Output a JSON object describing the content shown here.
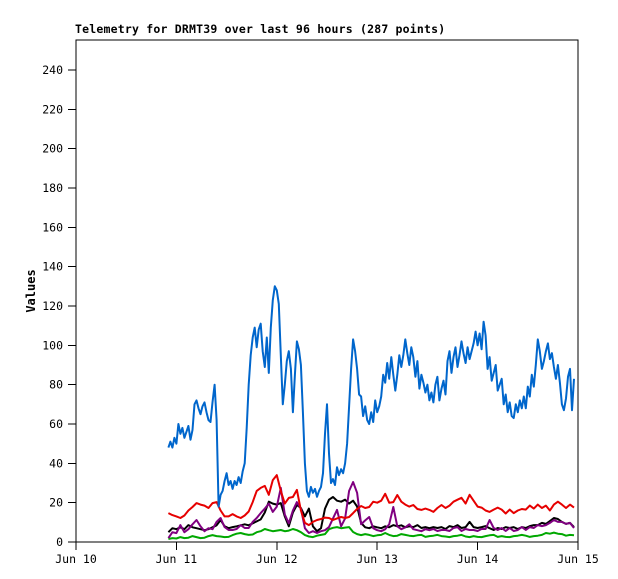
{
  "chart_data": {
    "type": "line",
    "title": "Telemetry for DRMT39 over last 96 hours (287 points)",
    "device": "DRMT39",
    "time_window_hours": 96,
    "points_count": 287,
    "ylabel": "Values",
    "xlabel": "",
    "grid": false,
    "legend": false,
    "background": "#ffffff",
    "axis_color": "#000000",
    "y_axis": {
      "ticks": [
        0,
        20,
        40,
        60,
        80,
        100,
        120,
        140,
        160,
        180,
        200,
        220,
        240
      ],
      "range": [
        0,
        255
      ]
    },
    "x_axis": {
      "tick_labels": [
        "Jun 10",
        "Jun 11",
        "Jun 12",
        "Jun 13",
        "Jun 14",
        "Jun 15"
      ],
      "tick_positions_days": [
        0,
        1,
        2,
        3,
        4,
        5
      ],
      "range_days": [
        0,
        5
      ]
    },
    "series": [
      {
        "name": "green",
        "color": "#00a800",
        "x_start_day": 0.92,
        "x_step_day": 0.04,
        "values": [
          1.5,
          2,
          1.8,
          2.5,
          2,
          2.2,
          3,
          2.5,
          2,
          2.2,
          3,
          3.5,
          3,
          2.8,
          2.5,
          2.6,
          3.5,
          4.2,
          4.6,
          4,
          3.6,
          3.8,
          5,
          5.5,
          6.6,
          6,
          5.5,
          5.8,
          6.1,
          5.5,
          5.8,
          6.6,
          6,
          5,
          3.5,
          2.8,
          2.5,
          3.2,
          3.6,
          4,
          6.5,
          7.2,
          7.6,
          7,
          7.3,
          7.6,
          5.1,
          4,
          3.5,
          4,
          3.6,
          3,
          3.4,
          3.6,
          4.6,
          3.6,
          3,
          3.2,
          4,
          3.6,
          3.2,
          3,
          3.4,
          3.6,
          2.6,
          3,
          3.2,
          3.6,
          3,
          2.8,
          2.5,
          3,
          3.2,
          3.6,
          2.8,
          2.5,
          3,
          2.6,
          2.5,
          3,
          3.4,
          3.6,
          2.6,
          3,
          2.6,
          2.5,
          3,
          3.2,
          3.6,
          3.2,
          2.6,
          3,
          3.2,
          3.6,
          4.6,
          4.2,
          4.8,
          4.2,
          4,
          3.2,
          3.6,
          3.4
        ]
      },
      {
        "name": "black",
        "color": "#000000",
        "x_start_day": 0.92,
        "x_step_day": 0.04,
        "values": [
          5,
          7,
          6.5,
          7.5,
          6.5,
          8.6,
          7.5,
          7,
          6.5,
          6,
          6.5,
          7.5,
          8.5,
          11.2,
          8,
          7,
          7.6,
          8,
          8.5,
          9,
          8.5,
          9.5,
          10.5,
          11.5,
          15,
          20.5,
          19.5,
          19,
          19.8,
          13,
          8,
          15,
          18.8,
          17.3,
          13,
          17,
          8,
          5.5,
          7,
          17,
          21.5,
          22.9,
          21,
          20.5,
          21.5,
          19.5,
          21,
          18,
          9.7,
          7.5,
          7,
          8,
          7.5,
          7,
          8,
          7.5,
          8.6,
          8,
          8.5,
          7.5,
          8,
          7.6,
          8.6,
          7.1,
          7.6,
          7,
          7.6,
          7.1,
          7.6,
          6.6,
          8.1,
          7.6,
          8.6,
          7.1,
          7.6,
          10.2,
          7.6,
          7.1,
          7.6,
          8.1,
          7,
          6.1,
          7.1,
          6.6,
          7.6,
          7.1,
          7.6,
          6.6,
          7.6,
          7.1,
          8.1,
          8.6,
          8.6,
          9.7,
          9.2,
          10.7,
          12.2,
          11.7,
          10.2,
          9.2,
          9.7,
          7.6
        ]
      },
      {
        "name": "purple",
        "color": "#800080",
        "x_start_day": 0.92,
        "x_step_day": 0.04,
        "values": [
          2,
          5,
          4.5,
          8.6,
          5,
          6.5,
          9,
          11.2,
          8,
          5.5,
          7,
          6.5,
          10.2,
          12.2,
          7.6,
          6.1,
          6.1,
          6.6,
          8.6,
          7.1,
          7.1,
          10.2,
          12.2,
          14.7,
          17,
          19.5,
          15.3,
          18,
          27.5,
          14,
          9.5,
          16,
          20.3,
          17,
          7,
          4.6,
          5.5,
          4.6,
          5.5,
          6,
          7.6,
          12,
          16.3,
          8,
          12,
          26,
          30.5,
          25,
          9,
          11,
          12.7,
          7,
          6,
          5.5,
          6.5,
          9,
          17.8,
          8,
          6.5,
          7.5,
          9,
          6.5,
          6,
          5.5,
          6.5,
          6,
          6.6,
          5.6,
          6.1,
          6.1,
          5.6,
          7.1,
          7.6,
          5.6,
          6.6,
          6.1,
          6.1,
          5.6,
          6.6,
          6.6,
          11.2,
          7.1,
          6.1,
          7.1,
          5.6,
          7.1,
          5.6,
          6.1,
          7.6,
          6.1,
          7.6,
          7.1,
          8.6,
          8.1,
          8.6,
          9.7,
          11.2,
          10.2,
          10.2,
          9.2,
          9.7,
          7.1
        ]
      },
      {
        "name": "red",
        "color": "#e60000",
        "x_start_day": 0.92,
        "x_step_day": 0.04,
        "values": [
          14.7,
          13.7,
          13,
          12.2,
          13.5,
          16,
          17.8,
          19.8,
          19,
          18.5,
          17.3,
          19.8,
          20.3,
          16,
          13,
          13,
          14.2,
          13,
          12.2,
          13.5,
          15.5,
          20.3,
          26,
          27.5,
          28.5,
          24,
          31.5,
          34,
          26,
          19.5,
          22.4,
          22.9,
          26.5,
          16,
          9.7,
          8.6,
          10.2,
          11.2,
          11.7,
          12.4,
          12.2,
          11.2,
          12,
          12.7,
          12.2,
          12.7,
          14.7,
          16.8,
          18.3,
          17.3,
          17.8,
          20.5,
          20,
          21,
          24.5,
          20,
          20.3,
          23.9,
          20.5,
          19,
          18,
          18.8,
          16.8,
          16.3,
          17,
          16.3,
          15.3,
          17.3,
          18.8,
          17.3,
          18.5,
          20.5,
          21.5,
          22.5,
          19.5,
          24,
          21,
          18,
          17.5,
          16,
          15.3,
          16.5,
          17.5,
          16.5,
          14.5,
          16.5,
          14.7,
          16,
          16.8,
          16.5,
          18.5,
          17,
          19,
          17.3,
          18.5,
          16,
          19,
          20.5,
          19,
          17.3,
          19,
          17.5
        ]
      },
      {
        "name": "blue",
        "color": "#0066cc",
        "x_start_day": 0.92,
        "x_step_day": 0.02,
        "values": [
          48,
          51,
          48,
          53,
          50,
          60,
          55,
          58,
          53,
          56,
          59,
          52,
          57,
          70,
          72,
          68,
          65,
          69,
          71,
          66,
          62,
          61,
          71,
          80,
          62,
          18,
          24,
          26,
          31,
          35,
          29,
          31,
          27,
          31,
          29,
          33,
          30,
          36,
          40,
          58,
          80,
          95,
          104,
          109,
          99,
          108,
          111,
          97,
          89,
          104,
          86,
          109,
          123,
          130,
          128,
          121,
          95,
          70,
          80,
          92,
          97,
          88,
          66,
          85,
          102,
          98,
          90,
          66,
          40,
          26,
          23,
          28,
          25,
          27,
          23,
          26,
          28,
          35,
          55,
          70,
          45,
          30,
          32,
          29,
          38,
          34,
          37,
          35,
          40,
          50,
          69,
          88,
          103,
          97,
          88,
          75,
          74,
          64,
          69,
          62,
          60,
          66,
          61,
          72,
          66,
          69,
          74,
          85,
          81,
          91,
          83,
          94,
          85,
          77,
          85,
          95,
          89,
          95,
          103,
          96,
          90,
          99,
          94,
          84,
          92,
          78,
          85,
          81,
          76,
          80,
          72,
          76,
          71,
          80,
          84,
          72,
          78,
          82,
          75,
          92,
          97,
          86,
          94,
          99,
          89,
          95,
          102,
          96,
          91,
          99,
          93,
          97,
          101,
          107,
          100,
          106,
          98,
          112,
          105,
          88,
          94,
          82,
          86,
          90,
          77,
          80,
          83,
          70,
          75,
          66,
          71,
          64,
          63,
          70,
          66,
          72,
          68,
          74,
          68,
          79,
          74,
          85,
          79,
          90,
          103,
          97,
          88,
          92,
          97,
          101,
          93,
          96,
          89,
          83,
          90,
          81,
          70,
          67,
          73,
          84,
          88,
          67,
          83
        ]
      }
    ]
  }
}
